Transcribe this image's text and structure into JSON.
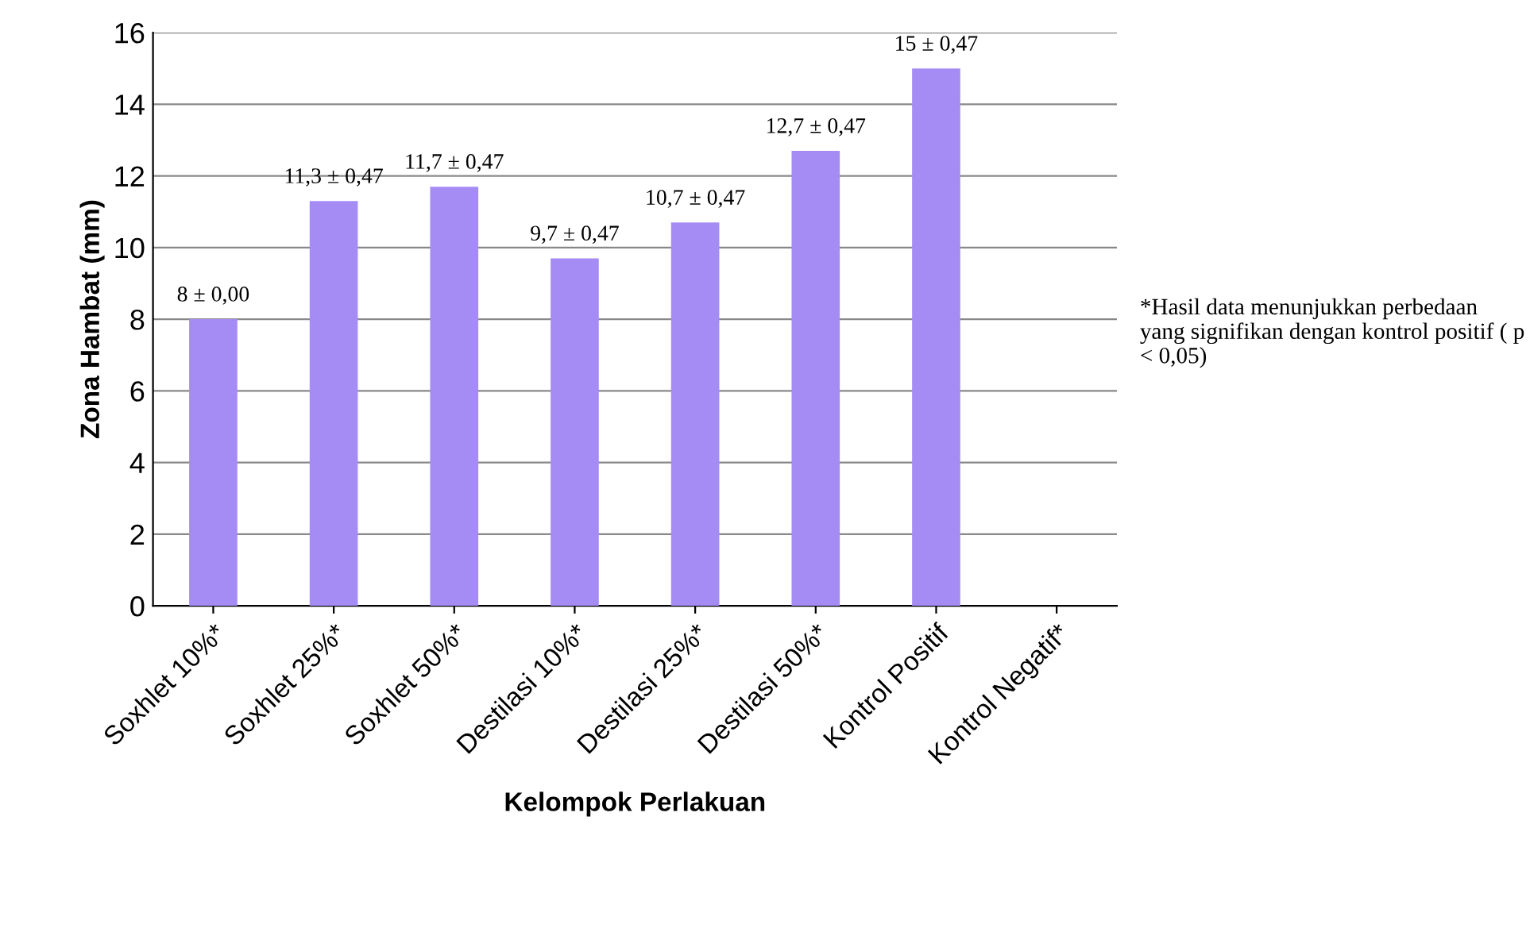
{
  "chart_data": {
    "type": "bar",
    "xlabel": "Kelompok Perlakuan",
    "ylabel": "Zona Hambat (mm)",
    "categories": [
      "Soxhlet 10%*",
      "Soxhlet 25%*",
      "Soxhlet 50%*",
      "Destilasi 10%*",
      "Destilasi 25%*",
      "Destilasi 50%*",
      "Kontrol Positif",
      "Kontrol Negatif*"
    ],
    "values": [
      8,
      11.3,
      11.7,
      9.7,
      10.7,
      12.7,
      15,
      0
    ],
    "value_labels": [
      "8 ± 0,00",
      "11,3 ± 0,47",
      "11,7 ± 0,47",
      "9,7 ± 0,47",
      "10,7 ± 0,47",
      "12,7 ± 0,47",
      "15 ± 0,47",
      null
    ],
    "color": "#a58cf5",
    "ylim": [
      0,
      16
    ],
    "yticks": [
      0,
      2,
      4,
      6,
      8,
      10,
      12,
      14,
      16
    ],
    "grid": "y",
    "annotations": [
      "*Hasil data menunjukkan perbedaan yang signifikan dengan kontrol positif ( p < 0,05)"
    ]
  }
}
